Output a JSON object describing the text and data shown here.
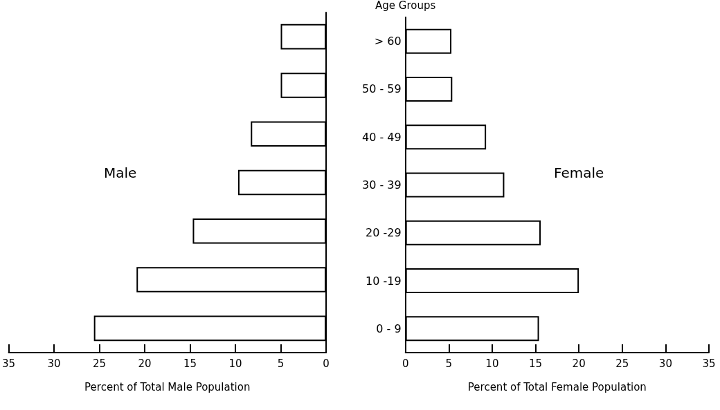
{
  "chart_data": [
    {
      "type": "bar",
      "orientation": "horizontal",
      "categories": [
        null,
        null,
        null,
        null,
        null,
        null,
        null
      ],
      "series": [
        {
          "name": "Male",
          "color": "#ffffff",
          "values": [
            5,
            5,
            8.3,
            9.7,
            14.7,
            20.9,
            25.6
          ]
        }
      ],
      "xlabel": "Percent of Total Male Population",
      "xlim": [
        35,
        0
      ],
      "xticks": [
        35,
        30,
        25,
        20,
        15,
        10,
        5,
        0
      ],
      "tick_labels": "x",
      "grid": false,
      "legend": false
    },
    {
      "type": "bar",
      "orientation": "horizontal",
      "categories": [
        "> 60",
        "50 - 59",
        "40 - 49",
        "30 - 39",
        "20 -29",
        "10 -19",
        "0 - 9"
      ],
      "series": [
        {
          "name": "Female",
          "color": "#ffffff",
          "values": [
            5.3,
            5.4,
            9.3,
            11.4,
            15.6,
            20.0,
            15.4
          ]
        }
      ],
      "xlabel": "Percent of Total Female Population",
      "ylabel": "Age Groups",
      "xlim": [
        0,
        35
      ],
      "xticks": [
        0,
        5,
        10,
        15,
        20,
        25,
        30,
        35
      ],
      "grid": false,
      "legend": false
    }
  ]
}
